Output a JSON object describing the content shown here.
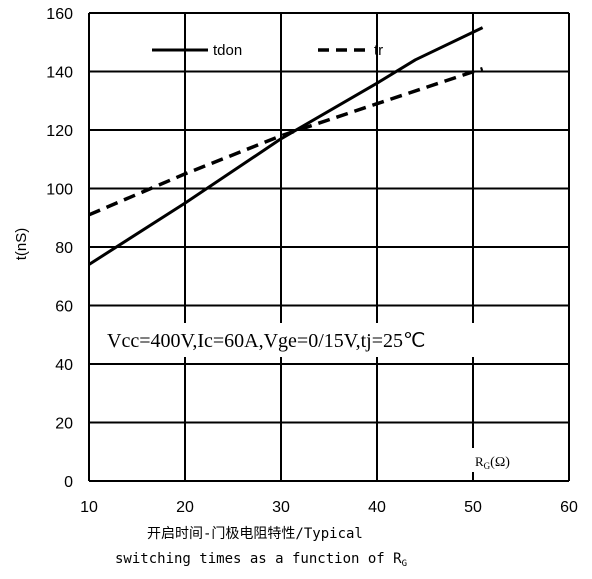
{
  "chart_data": {
    "type": "line",
    "title": "",
    "ylabel": "t(nS)",
    "xunit_label": "RG(Ω)",
    "xlim": [
      10,
      60
    ],
    "ylim": [
      0,
      160
    ],
    "xticks": [
      "10",
      "20",
      "30",
      "40",
      "50",
      "60"
    ],
    "yticks": [
      "0",
      "20",
      "40",
      "60",
      "80",
      "100",
      "120",
      "140",
      "160"
    ],
    "grid": true,
    "legend": "top",
    "annotation": "Vcc=400V,Ic=60A,Vge=0/15V,tj=25℃",
    "caption_line1": "开启时间-门极电阻特性/Typical",
    "caption_line2": "switching times as a function of RG",
    "series": [
      {
        "name": "tdon",
        "style": "solid",
        "color": "#000000",
        "x": [
          10,
          20,
          30,
          40,
          44,
          51
        ],
        "y": [
          74,
          95,
          117,
          136,
          144,
          155
        ]
      },
      {
        "name": "tr",
        "style": "dashed",
        "color": "#000000",
        "x": [
          10,
          20,
          30,
          40,
          51
        ],
        "y": [
          91,
          105,
          118,
          129,
          141
        ]
      }
    ]
  }
}
